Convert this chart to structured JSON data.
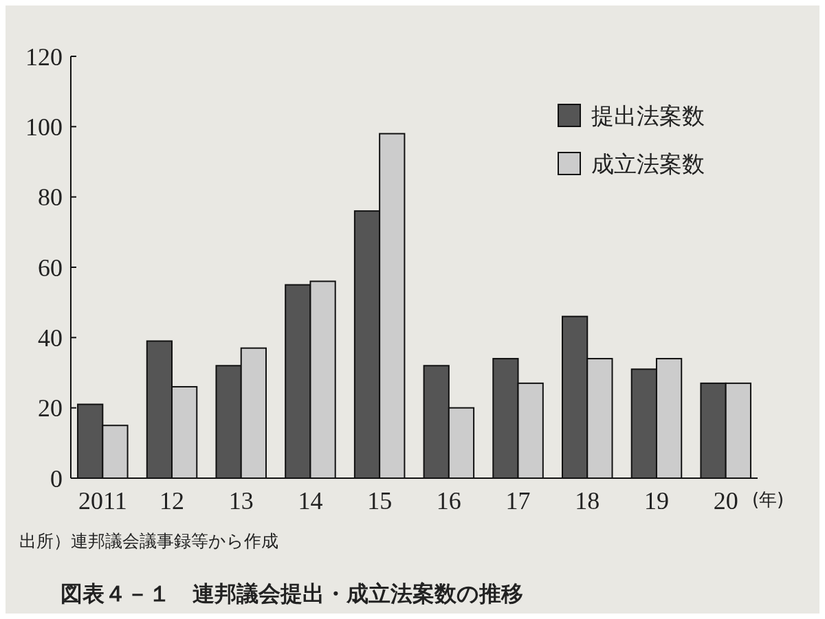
{
  "chart_data": {
    "type": "bar",
    "title": "図表４－１　連邦議会提出・成立法案数の推移",
    "xlabel": "(年)",
    "annotations": [
      "出所）連邦議会議事録等から作成"
    ],
    "categories": [
      "2011",
      "12",
      "13",
      "14",
      "15",
      "16",
      "17",
      "18",
      "19",
      "20"
    ],
    "series": [
      {
        "name": "提出法案数",
        "color": "#555555",
        "values": [
          21,
          39,
          32,
          55,
          76,
          32,
          34,
          46,
          31,
          27
        ]
      },
      {
        "name": "成立法案数",
        "color": "#cccccc",
        "values": [
          15,
          26,
          37,
          56,
          98,
          20,
          27,
          34,
          34,
          27
        ]
      }
    ],
    "ylim": [
      0,
      120
    ],
    "yticks": [
      0,
      20,
      40,
      60,
      80,
      100,
      120
    ],
    "grid": false,
    "legend": "top right"
  }
}
